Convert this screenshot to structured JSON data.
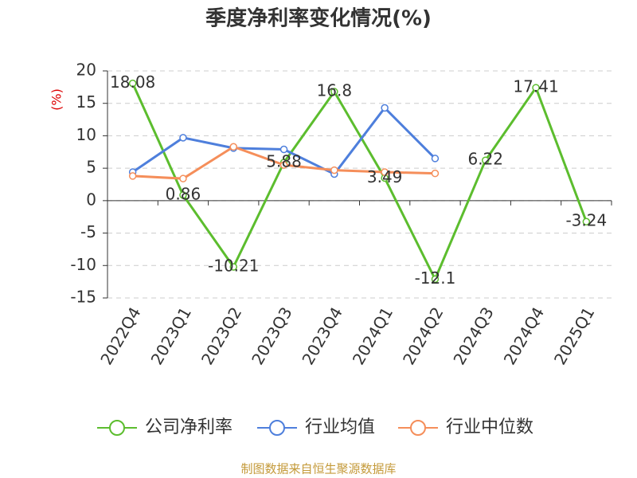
{
  "chart_data": {
    "type": "line",
    "title": "季度净利率变化情况(%)",
    "y_label": "(%)",
    "categories": [
      "2022Q4",
      "2023Q1",
      "2023Q2",
      "2023Q3",
      "2023Q4",
      "2024Q1",
      "2024Q2",
      "2024Q3",
      "2024Q4",
      "2025Q1"
    ],
    "series": [
      {
        "name": "公司净利率",
        "color": "#5cbd2e",
        "values": [
          18.08,
          0.86,
          -10.21,
          5.88,
          16.8,
          3.49,
          -12.1,
          6.22,
          17.41,
          -3.24
        ],
        "labels": true
      },
      {
        "name": "行业均值",
        "color": "#4e7fdc",
        "values": [
          4.4,
          9.7,
          8.1,
          7.9,
          4.1,
          14.3,
          6.5,
          null,
          null,
          null
        ]
      },
      {
        "name": "行业中位数",
        "color": "#f58e5a",
        "values": [
          3.8,
          3.4,
          8.3,
          5.5,
          4.7,
          4.4,
          4.2,
          null,
          null,
          null
        ]
      }
    ],
    "ylim": [
      -15,
      20
    ],
    "yticks": [
      -15,
      -10,
      -5,
      0,
      5,
      10,
      15,
      20
    ],
    "grid": true,
    "footer": "制图数据来自恒生聚源数据库"
  }
}
